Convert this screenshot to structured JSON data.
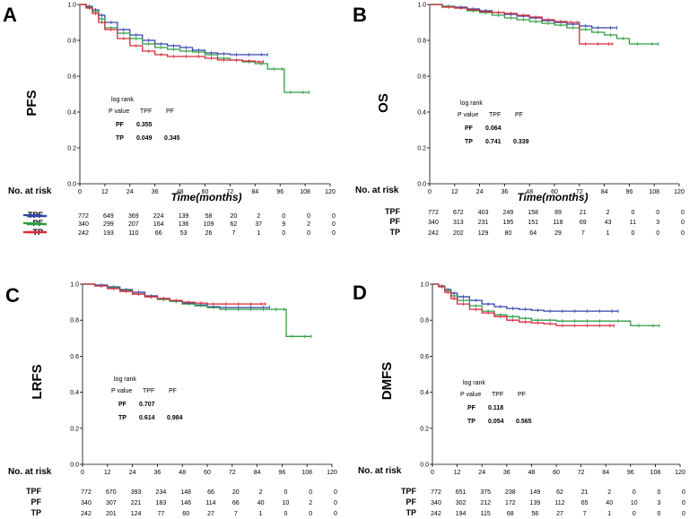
{
  "colors": {
    "TPF": "#3344aa",
    "PF": "#2e9e44",
    "TP": "#d62a3c"
  },
  "chart_data": [
    {
      "type": "line",
      "panel": "A",
      "ylabel": "PFS",
      "xlabel": "Time(months)",
      "xlim": [
        0,
        120
      ],
      "ylim": [
        0,
        1.0
      ],
      "x_ticks": [
        "0",
        "12",
        "24",
        "36",
        "48",
        "60",
        "72",
        "84",
        "96",
        "108",
        "120"
      ],
      "y_ticks": [
        "0.0",
        "0.2",
        "0.4",
        "0.6",
        "0.8",
        "1.0"
      ],
      "stats": {
        "title": "log rank",
        "header": [
          "P value",
          "TPF",
          "PF"
        ],
        "rows": [
          [
            "PF",
            "0.355",
            ""
          ],
          [
            "TP",
            "0.049",
            "0.345"
          ]
        ]
      },
      "series": [
        {
          "name": "TPF",
          "x": [
            0,
            3,
            6,
            9,
            12,
            18,
            24,
            30,
            36,
            42,
            48,
            54,
            60,
            66,
            72,
            78,
            84,
            90
          ],
          "y": [
            1.0,
            0.99,
            0.97,
            0.94,
            0.9,
            0.86,
            0.83,
            0.8,
            0.78,
            0.77,
            0.76,
            0.745,
            0.73,
            0.725,
            0.72,
            0.72,
            0.72,
            0.72
          ]
        },
        {
          "name": "PF",
          "x": [
            0,
            3,
            6,
            9,
            12,
            18,
            24,
            30,
            36,
            42,
            48,
            54,
            60,
            66,
            72,
            78,
            84,
            90,
            96,
            98,
            104,
            110
          ],
          "y": [
            1.0,
            0.985,
            0.96,
            0.92,
            0.87,
            0.84,
            0.81,
            0.78,
            0.76,
            0.75,
            0.74,
            0.735,
            0.72,
            0.7,
            0.69,
            0.68,
            0.67,
            0.64,
            0.64,
            0.51,
            0.51,
            0.51
          ]
        },
        {
          "name": "TP",
          "x": [
            0,
            3,
            6,
            9,
            12,
            18,
            24,
            30,
            36,
            42,
            48,
            54,
            60,
            66,
            72,
            78,
            84,
            88
          ],
          "y": [
            1.0,
            0.98,
            0.95,
            0.9,
            0.86,
            0.81,
            0.77,
            0.74,
            0.72,
            0.71,
            0.71,
            0.71,
            0.7,
            0.69,
            0.69,
            0.685,
            0.68,
            0.68
          ]
        }
      ],
      "risk": {
        "title": "No. at risk",
        "rows": [
          {
            "label": "TPF",
            "values": [
              "772",
              "649",
              "369",
              "224",
              "139",
              "58",
              "20",
              "2",
              "0",
              "0",
              "0"
            ]
          },
          {
            "label": "PF",
            "values": [
              "340",
              "299",
              "207",
              "164",
              "136",
              "109",
              "62",
              "37",
              "9",
              "2",
              "0"
            ]
          },
          {
            "label": "TP",
            "values": [
              "242",
              "193",
              "110",
              "66",
              "53",
              "26",
              "7",
              "1",
              "0",
              "0",
              "0"
            ]
          }
        ]
      }
    },
    {
      "type": "line",
      "panel": "B",
      "ylabel": "OS",
      "xlabel": "Time(months)",
      "xlim": [
        0,
        120
      ],
      "ylim": [
        0,
        1.0
      ],
      "x_ticks": [
        "0",
        "12",
        "24",
        "36",
        "48",
        "60",
        "72",
        "84",
        "96",
        "108",
        "120"
      ],
      "y_ticks": [
        "0.0",
        "0.2",
        "0.4",
        "0.6",
        "0.8",
        "1.0"
      ],
      "stats": {
        "title": "log rank",
        "header": [
          "P value",
          "TPF",
          "PF"
        ],
        "rows": [
          [
            "PF",
            "0.064",
            ""
          ],
          [
            "TP",
            "0.741",
            "0.339"
          ]
        ]
      },
      "series": [
        {
          "name": "TPF",
          "x": [
            0,
            6,
            12,
            18,
            24,
            30,
            36,
            42,
            48,
            54,
            60,
            66,
            72,
            78,
            84,
            90
          ],
          "y": [
            1.0,
            0.99,
            0.985,
            0.975,
            0.965,
            0.955,
            0.945,
            0.935,
            0.925,
            0.91,
            0.9,
            0.89,
            0.88,
            0.87,
            0.87,
            0.87
          ]
        },
        {
          "name": "PF",
          "x": [
            0,
            6,
            12,
            18,
            24,
            30,
            36,
            42,
            48,
            54,
            60,
            66,
            72,
            78,
            84,
            90,
            96,
            104,
            110
          ],
          "y": [
            1.0,
            0.99,
            0.98,
            0.965,
            0.955,
            0.94,
            0.925,
            0.915,
            0.905,
            0.895,
            0.885,
            0.87,
            0.86,
            0.845,
            0.83,
            0.81,
            0.78,
            0.78,
            0.78
          ]
        },
        {
          "name": "TP",
          "x": [
            0,
            6,
            12,
            18,
            24,
            30,
            36,
            42,
            48,
            54,
            60,
            66,
            70,
            72,
            78,
            84,
            88
          ],
          "y": [
            1.0,
            0.985,
            0.98,
            0.97,
            0.96,
            0.955,
            0.95,
            0.94,
            0.93,
            0.915,
            0.905,
            0.9,
            0.9,
            0.78,
            0.78,
            0.78,
            0.78
          ]
        }
      ],
      "risk": {
        "title": "No. at risk",
        "rows": [
          {
            "label": "TPF",
            "values": [
              "772",
              "672",
              "403",
              "249",
              "158",
              "89",
              "21",
              "2",
              "0",
              "0",
              "0"
            ]
          },
          {
            "label": "PF",
            "values": [
              "340",
              "313",
              "231",
              "195",
              "151",
              "118",
              "69",
              "43",
              "11",
              "3",
              "0"
            ]
          },
          {
            "label": "TP",
            "values": [
              "242",
              "202",
              "129",
              "80",
              "64",
              "29",
              "7",
              "1",
              "0",
              "0",
              "0"
            ]
          }
        ]
      }
    },
    {
      "type": "line",
      "panel": "C",
      "ylabel": "LRFS",
      "xlabel": "",
      "xlim": [
        0,
        120
      ],
      "ylim": [
        0,
        1.0
      ],
      "x_ticks": [
        "0",
        "12",
        "24",
        "36",
        "48",
        "60",
        "72",
        "84",
        "96",
        "108",
        "120"
      ],
      "y_ticks": [
        "0.0",
        "0.2",
        "0.4",
        "0.6",
        "0.8",
        "1.0"
      ],
      "stats": {
        "title": "log rank",
        "header": [
          "P value",
          "TPF",
          "PF"
        ],
        "rows": [
          [
            "PF",
            "0.707",
            ""
          ],
          [
            "TP",
            "0.614",
            "0.984"
          ]
        ]
      },
      "series": [
        {
          "name": "TPF",
          "x": [
            0,
            6,
            12,
            18,
            24,
            30,
            36,
            42,
            48,
            54,
            60,
            66,
            72,
            78,
            84,
            90
          ],
          "y": [
            1.0,
            0.995,
            0.985,
            0.97,
            0.955,
            0.935,
            0.92,
            0.905,
            0.895,
            0.885,
            0.875,
            0.87,
            0.87,
            0.87,
            0.87,
            0.87
          ]
        },
        {
          "name": "PF",
          "x": [
            0,
            6,
            12,
            18,
            24,
            30,
            36,
            42,
            48,
            54,
            60,
            66,
            72,
            78,
            84,
            90,
            96,
            98,
            104,
            110
          ],
          "y": [
            1.0,
            0.99,
            0.98,
            0.965,
            0.945,
            0.93,
            0.915,
            0.905,
            0.89,
            0.88,
            0.87,
            0.86,
            0.86,
            0.86,
            0.86,
            0.86,
            0.86,
            0.71,
            0.71,
            0.71
          ]
        },
        {
          "name": "TP",
          "x": [
            0,
            6,
            12,
            18,
            24,
            30,
            36,
            42,
            48,
            54,
            60,
            66,
            72,
            78,
            84,
            88
          ],
          "y": [
            1.0,
            0.99,
            0.975,
            0.96,
            0.945,
            0.93,
            0.92,
            0.91,
            0.9,
            0.895,
            0.89,
            0.89,
            0.89,
            0.89,
            0.89,
            0.89
          ]
        }
      ],
      "risk": {
        "title": "No. at risk",
        "rows": [
          {
            "label": "TPF",
            "values": [
              "772",
              "670",
              "393",
              "234",
              "148",
              "66",
              "20",
              "2",
              "0",
              "0",
              "0"
            ]
          },
          {
            "label": "PF",
            "values": [
              "340",
              "307",
              "221",
              "183",
              "146",
              "114",
              "66",
              "40",
              "10",
              "2",
              "0"
            ]
          },
          {
            "label": "TP",
            "values": [
              "242",
              "201",
              "124",
              "77",
              "60",
              "27",
              "7",
              "1",
              "0",
              "0",
              "0"
            ]
          }
        ]
      }
    },
    {
      "type": "line",
      "panel": "D",
      "ylabel": "DMFS",
      "xlabel": "",
      "xlim": [
        0,
        120
      ],
      "ylim": [
        0,
        1.0
      ],
      "x_ticks": [
        "0",
        "12",
        "24",
        "36",
        "48",
        "60",
        "72",
        "84",
        "96",
        "108",
        "120"
      ],
      "y_ticks": [
        "0.0",
        "0.2",
        "0.4",
        "0.6",
        "0.8",
        "1.0"
      ],
      "stats": {
        "title": "log rank",
        "header": [
          "P value",
          "TPF",
          "PF"
        ],
        "rows": [
          [
            "PF",
            "0.118",
            ""
          ],
          [
            "TP",
            "0.054",
            "0.565"
          ]
        ]
      },
      "series": [
        {
          "name": "TPF",
          "x": [
            0,
            3,
            6,
            9,
            12,
            18,
            24,
            30,
            36,
            42,
            48,
            54,
            60,
            66,
            72,
            78,
            84,
            90
          ],
          "y": [
            1.0,
            0.99,
            0.97,
            0.95,
            0.93,
            0.91,
            0.89,
            0.875,
            0.865,
            0.86,
            0.855,
            0.85,
            0.85,
            0.85,
            0.85,
            0.85,
            0.85,
            0.85
          ]
        },
        {
          "name": "PF",
          "x": [
            0,
            3,
            6,
            9,
            12,
            18,
            24,
            30,
            36,
            42,
            48,
            54,
            60,
            66,
            72,
            78,
            84,
            96,
            104,
            110
          ],
          "y": [
            1.0,
            0.99,
            0.965,
            0.935,
            0.91,
            0.88,
            0.85,
            0.83,
            0.82,
            0.81,
            0.8,
            0.8,
            0.795,
            0.795,
            0.795,
            0.795,
            0.795,
            0.77,
            0.77,
            0.77
          ]
        },
        {
          "name": "TP",
          "x": [
            0,
            3,
            6,
            9,
            12,
            18,
            24,
            30,
            36,
            42,
            48,
            54,
            60,
            66,
            72,
            78,
            84,
            88
          ],
          "y": [
            1.0,
            0.985,
            0.955,
            0.92,
            0.89,
            0.86,
            0.84,
            0.82,
            0.8,
            0.79,
            0.785,
            0.78,
            0.77,
            0.77,
            0.77,
            0.77,
            0.77,
            0.77
          ]
        }
      ],
      "risk": {
        "title": "No. at risk",
        "rows": [
          {
            "label": "TPF",
            "values": [
              "772",
              "651",
              "375",
              "238",
              "149",
              "62",
              "21",
              "2",
              "0",
              "0",
              "0"
            ]
          },
          {
            "label": "PF",
            "values": [
              "340",
              "302",
              "212",
              "172",
              "139",
              "112",
              "65",
              "40",
              "10",
              "3",
              "0"
            ]
          },
          {
            "label": "TP",
            "values": [
              "242",
              "194",
              "115",
              "68",
              "56",
              "27",
              "7",
              "1",
              "0",
              "0",
              "0"
            ]
          }
        ]
      }
    }
  ]
}
